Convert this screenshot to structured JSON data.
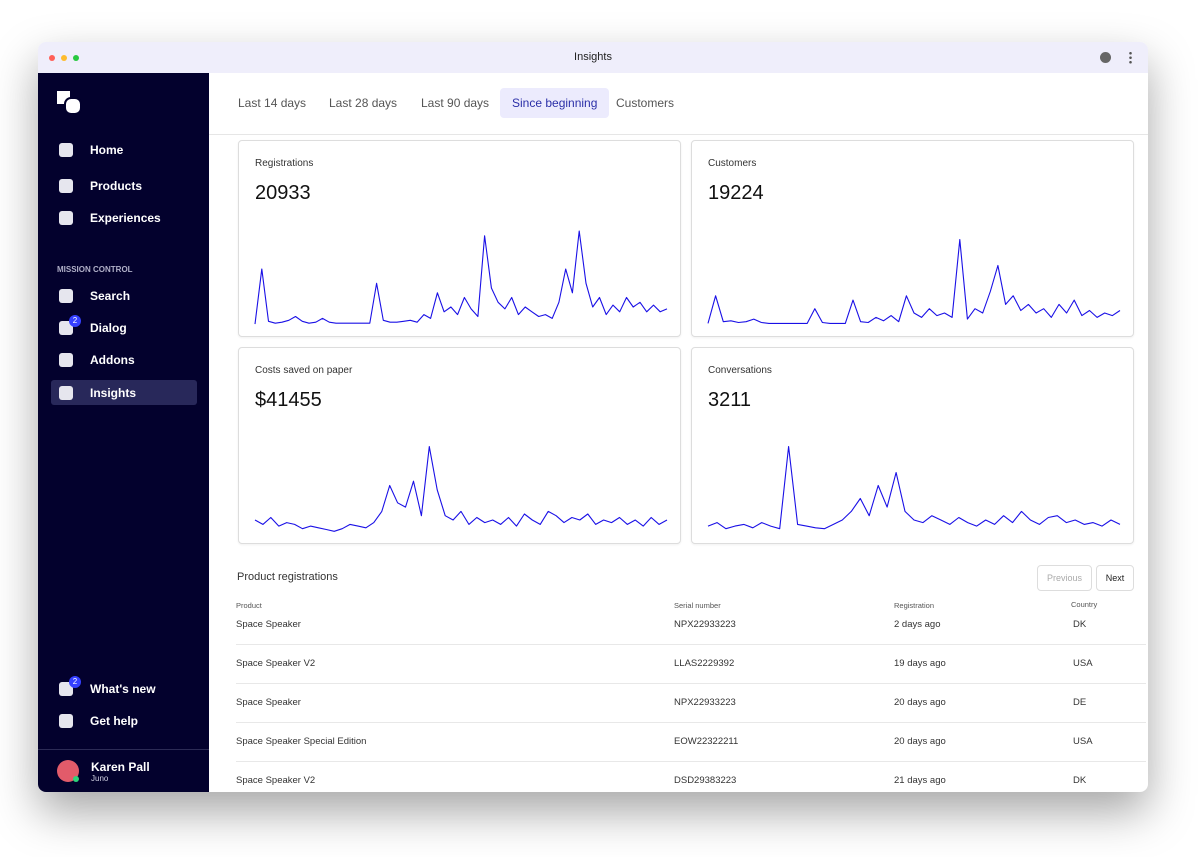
{
  "window": {
    "title": "Insights"
  },
  "sidebar": {
    "nav": [
      "Home",
      "Products",
      "Experiences"
    ],
    "section": "MISSION CONTROL",
    "mission": [
      {
        "label": "Search"
      },
      {
        "label": "Dialog",
        "badge": "2"
      },
      {
        "label": "Addons"
      },
      {
        "label": "Insights",
        "active": true
      }
    ],
    "footer": [
      {
        "label": "What's new",
        "badge": "2"
      },
      {
        "label": "Get help"
      }
    ],
    "user": {
      "name": "Karen Pall",
      "org": "Juno"
    }
  },
  "tabs": [
    "Last 14 days",
    "Last 28 days",
    "Last 90 days",
    "Since beginning",
    "Customers"
  ],
  "active_tab": 3,
  "cards": [
    {
      "label": "Registrations",
      "value": "20933",
      "ylim": [
        0,
        100
      ],
      "values": [
        2,
        60,
        5,
        3,
        4,
        6,
        10,
        5,
        3,
        4,
        8,
        4,
        3,
        3,
        3,
        3,
        3,
        3,
        45,
        6,
        4,
        4,
        5,
        6,
        4,
        12,
        8,
        35,
        15,
        20,
        12,
        30,
        18,
        10,
        95,
        40,
        25,
        18,
        30,
        12,
        20,
        15,
        10,
        12,
        8,
        25,
        60,
        35,
        100,
        45,
        20,
        30,
        12,
        22,
        15,
        30,
        20,
        25,
        15,
        22,
        15,
        18
      ]
    },
    {
      "label": "Customers",
      "value": "19224",
      "ylim": [
        0,
        110
      ],
      "values": [
        3,
        35,
        5,
        6,
        4,
        5,
        8,
        4,
        3,
        3,
        3,
        3,
        3,
        3,
        20,
        4,
        3,
        3,
        3,
        30,
        5,
        4,
        10,
        6,
        12,
        5,
        35,
        15,
        10,
        20,
        12,
        15,
        10,
        100,
        8,
        20,
        15,
        40,
        70,
        25,
        35,
        18,
        25,
        15,
        20,
        10,
        25,
        15,
        30,
        12,
        18,
        10,
        15,
        12,
        18
      ]
    },
    {
      "label": "Costs saved on paper",
      "value": "$41455",
      "ylim": [
        0,
        110
      ],
      "values": [
        15,
        10,
        18,
        8,
        12,
        10,
        5,
        8,
        6,
        4,
        2,
        5,
        10,
        8,
        6,
        12,
        25,
        55,
        35,
        30,
        60,
        20,
        100,
        50,
        20,
        15,
        25,
        10,
        18,
        12,
        15,
        10,
        18,
        8,
        22,
        15,
        10,
        25,
        20,
        12,
        18,
        15,
        22,
        10,
        15,
        12,
        18,
        10,
        15,
        8,
        18,
        10,
        15
      ]
    },
    {
      "label": "Conversations",
      "value": "3211",
      "ylim": [
        0,
        110
      ],
      "values": [
        8,
        12,
        5,
        8,
        10,
        6,
        12,
        8,
        5,
        100,
        10,
        8,
        6,
        5,
        10,
        15,
        25,
        40,
        20,
        55,
        30,
        70,
        25,
        15,
        12,
        20,
        15,
        10,
        18,
        12,
        8,
        15,
        10,
        20,
        12,
        25,
        15,
        10,
        18,
        20,
        12,
        15,
        10,
        12,
        8,
        15,
        10
      ]
    }
  ],
  "table": {
    "title": "Product registrations",
    "previous": "Previous",
    "next": "Next",
    "columns": [
      "Product",
      "Serial number",
      "Registration",
      "Country"
    ],
    "rows": [
      [
        "Space Speaker",
        "NPX22933223",
        "2 days ago",
        "DK"
      ],
      [
        "Space Speaker V2",
        "LLAS2229392",
        "19 days ago",
        "USA"
      ],
      [
        "Space Speaker",
        "NPX22933223",
        "20 days ago",
        "DE"
      ],
      [
        "Space Speaker Special Edition",
        "EOW22322211",
        "20 days ago",
        "USA"
      ],
      [
        "Space Speaker V2",
        "DSD29383223",
        "21 days ago",
        "DK"
      ]
    ]
  }
}
